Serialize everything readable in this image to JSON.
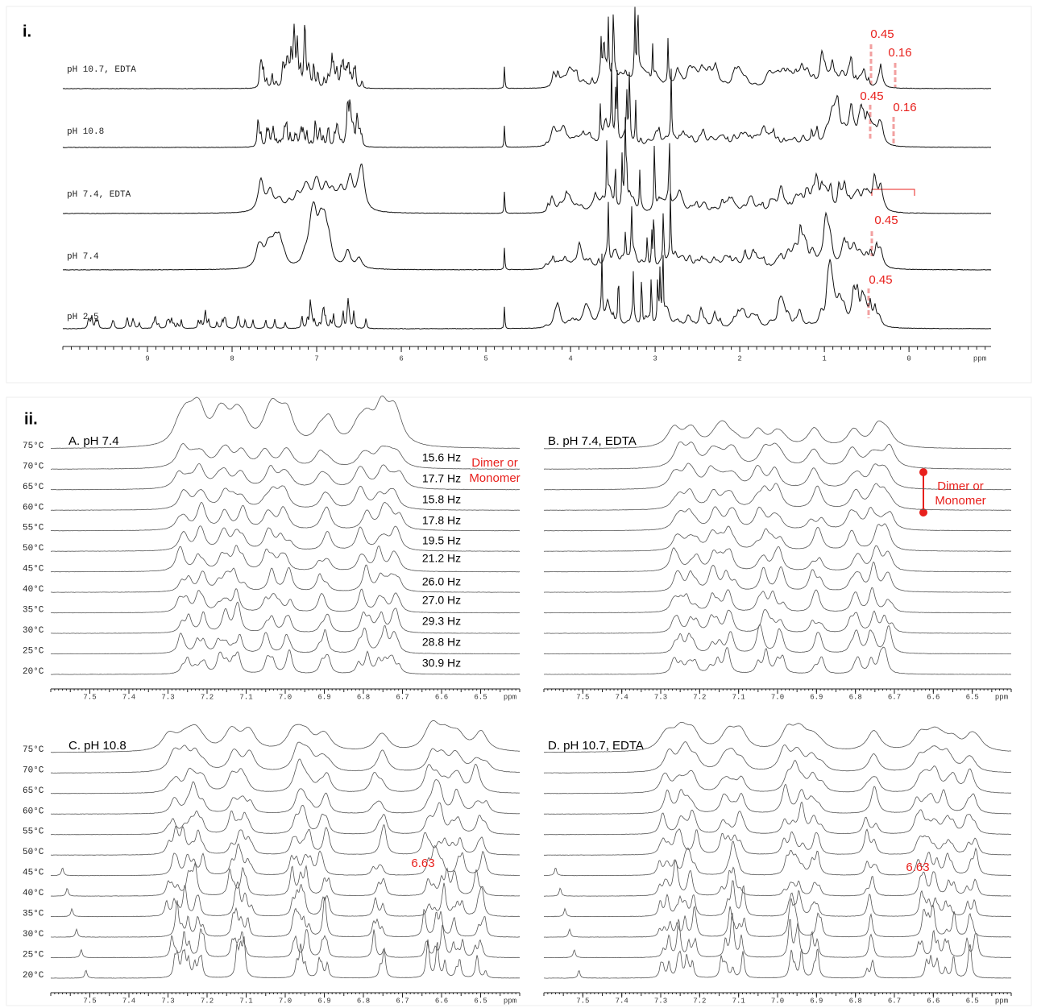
{
  "panel_i": {
    "label": "i.",
    "traces": [
      "pH 10.7, EDTA",
      "pH 10.8",
      "pH 7.4, EDTA",
      "pH 7.4",
      "pH 2.5"
    ],
    "annotations": [
      "0.45",
      "0.16",
      "0.45",
      "0.16",
      "0.45",
      "0.45"
    ],
    "xlim": [
      10,
      -0.97
    ],
    "xticks": [
      9,
      8,
      7,
      6,
      5,
      4,
      3,
      2,
      1,
      0
    ],
    "x_unit": "ppm"
  },
  "panel_ii": {
    "label": "ii.",
    "temperatures": [
      "75°C",
      "70°C",
      "65°C",
      "60°C",
      "55°C",
      "50°C",
      "45°C",
      "40°C",
      "35°C",
      "30°C",
      "25°C",
      "20°C"
    ],
    "xlim": [
      7.6,
      6.4
    ],
    "xticks": [
      7.5,
      7.4,
      7.3,
      7.2,
      7.1,
      {
        "value": 7,
        "label": "7.0"
      },
      6.9,
      6.8,
      6.7,
      6.6,
      6.5
    ],
    "x_unit": "ppm",
    "panels": [
      {
        "title": "A. pH 7.4",
        "couplings": [
          "15.6 Hz",
          "17.7 Hz",
          "15.8 Hz",
          "17.8 Hz",
          "19.5 Hz",
          "21.2 Hz",
          "26.0 Hz",
          "27.0 Hz",
          "29.3 Hz",
          "28.8 Hz",
          "30.9 Hz"
        ]
      },
      {
        "title": "B. pH 7.4, EDTA"
      },
      {
        "title": "C. pH 10.8"
      },
      {
        "title": "D. pH 10.7, EDTA"
      }
    ],
    "dimer_note": [
      "Dimer or",
      "Monomer"
    ],
    "shift_label": "6.63"
  }
}
